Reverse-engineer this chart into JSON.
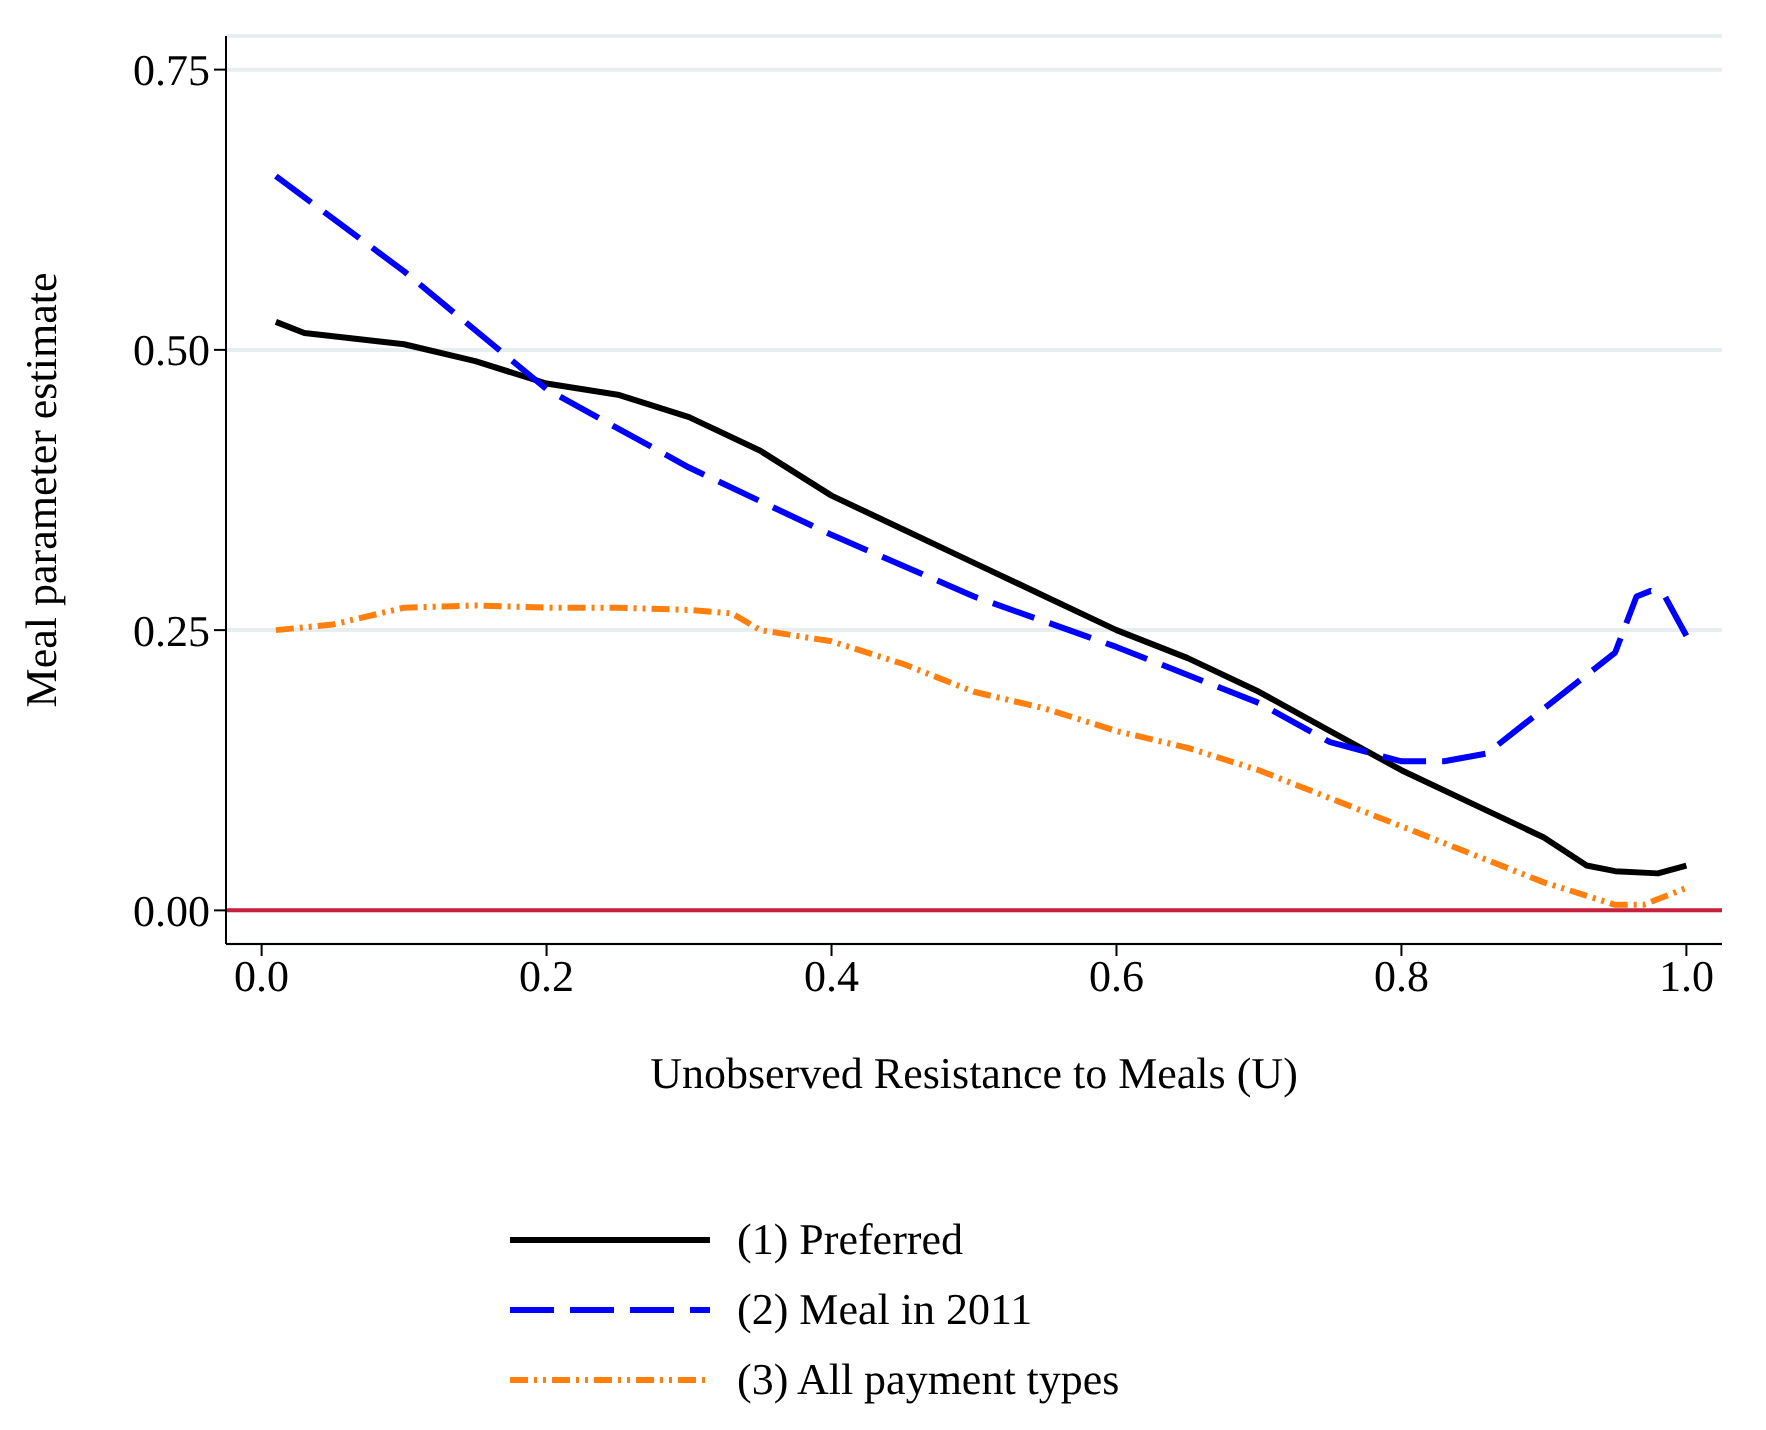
{
  "chart_data": {
    "type": "line",
    "xlabel": "Unobserved Resistance to Meals (U)",
    "ylabel": "Meal parameter estimate",
    "xlim": [
      -0.025,
      1.025
    ],
    "xticks": [
      {
        "value": 0,
        "label": "0.0"
      },
      {
        "value": 0.2,
        "label": "0.2"
      },
      {
        "value": 0.4,
        "label": "0.4"
      },
      {
        "value": 0.6,
        "label": "0.6"
      },
      {
        "value": 0.8,
        "label": "0.8"
      },
      {
        "value": 1,
        "label": "1.0"
      }
    ],
    "ylim": [
      -0.03,
      0.78
    ],
    "yticks": [
      {
        "value": 0,
        "label": "0.00"
      },
      {
        "value": 0.25,
        "label": "0.25"
      },
      {
        "value": 0.5,
        "label": "0.50"
      },
      {
        "value": 0.75,
        "label": "0.75"
      }
    ],
    "grid": "y",
    "legend": "bottom",
    "marker": "none",
    "ref_lines": [
      {
        "axis": "y",
        "value": 0,
        "color": "#c8203c"
      }
    ],
    "series": [
      {
        "name": "(1) Preferred",
        "color": "#000000",
        "line_style": "solid",
        "x": [
          0.01,
          0.03,
          0.1,
          0.15,
          0.2,
          0.25,
          0.3,
          0.35,
          0.4,
          0.45,
          0.5,
          0.55,
          0.6,
          0.65,
          0.7,
          0.75,
          0.8,
          0.85,
          0.9,
          0.93,
          0.95,
          0.98,
          1.0
        ],
        "values": [
          0.525,
          0.515,
          0.505,
          0.49,
          0.47,
          0.46,
          0.44,
          0.41,
          0.37,
          0.34,
          0.31,
          0.28,
          0.25,
          0.225,
          0.195,
          0.16,
          0.125,
          0.095,
          0.065,
          0.04,
          0.035,
          0.033,
          0.04
        ]
      },
      {
        "name": "(2) Meal in 2011",
        "color": "#0000ff",
        "line_style": "dashed",
        "x": [
          0.01,
          0.1,
          0.2,
          0.3,
          0.4,
          0.5,
          0.6,
          0.7,
          0.75,
          0.8,
          0.83,
          0.86,
          0.9,
          0.93,
          0.95,
          0.965,
          0.975,
          0.985,
          1.0
        ],
        "values": [
          0.655,
          0.57,
          0.465,
          0.395,
          0.335,
          0.28,
          0.235,
          0.185,
          0.15,
          0.133,
          0.133,
          0.14,
          0.18,
          0.21,
          0.23,
          0.28,
          0.285,
          0.28,
          0.245
        ]
      },
      {
        "name": "(3) All payment types",
        "color": "#ff7f0e",
        "line_style": "dotted",
        "x": [
          0.01,
          0.05,
          0.1,
          0.15,
          0.2,
          0.25,
          0.3,
          0.33,
          0.35,
          0.4,
          0.45,
          0.5,
          0.55,
          0.6,
          0.65,
          0.7,
          0.75,
          0.8,
          0.85,
          0.9,
          0.95,
          0.97,
          1.0
        ],
        "values": [
          0.25,
          0.255,
          0.27,
          0.272,
          0.27,
          0.27,
          0.268,
          0.265,
          0.25,
          0.24,
          0.22,
          0.195,
          0.18,
          0.16,
          0.145,
          0.125,
          0.1,
          0.075,
          0.05,
          0.025,
          0.005,
          0.005,
          0.02
        ]
      }
    ]
  }
}
